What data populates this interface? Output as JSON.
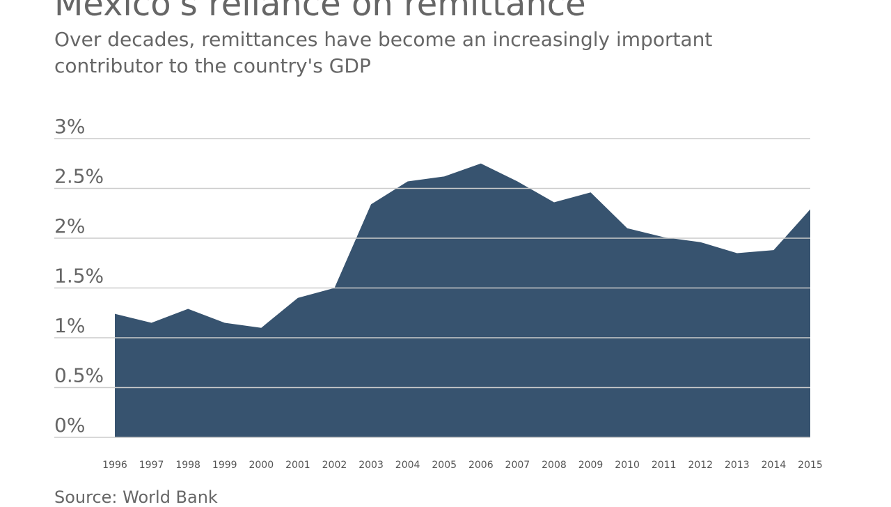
{
  "title": "Mexico's reliance on remittance",
  "subtitle": "Over decades, remittances have become an increasingly important contributor to the country's GDP",
  "source": "Source: World Bank",
  "chart_data": {
    "type": "area",
    "title": "Mexico's reliance on remittance",
    "subtitle": "Over decades, remittances have become an increasingly important contributor to the country's GDP",
    "xlabel": "",
    "ylabel": "",
    "categories": [
      "1996",
      "1997",
      "1998",
      "1999",
      "2000",
      "2001",
      "2002",
      "2003",
      "2004",
      "2005",
      "2006",
      "2007",
      "2008",
      "2009",
      "2010",
      "2011",
      "2012",
      "2013",
      "2014",
      "2015"
    ],
    "values": [
      1.24,
      1.15,
      1.29,
      1.15,
      1.1,
      1.4,
      1.5,
      2.34,
      2.57,
      2.62,
      2.75,
      2.57,
      2.36,
      2.46,
      2.1,
      2.01,
      1.96,
      1.85,
      1.88,
      2.29
    ],
    "ylim": [
      0,
      3
    ],
    "yticks": [
      "0%",
      "0.5%",
      "1%",
      "1.5%",
      "2%",
      "2.5%",
      "3%"
    ],
    "ytick_values": [
      0,
      0.5,
      1,
      1.5,
      2,
      2.5,
      3
    ],
    "grid": true,
    "fill_color": "#37536f",
    "grid_color": "#cccccc"
  }
}
